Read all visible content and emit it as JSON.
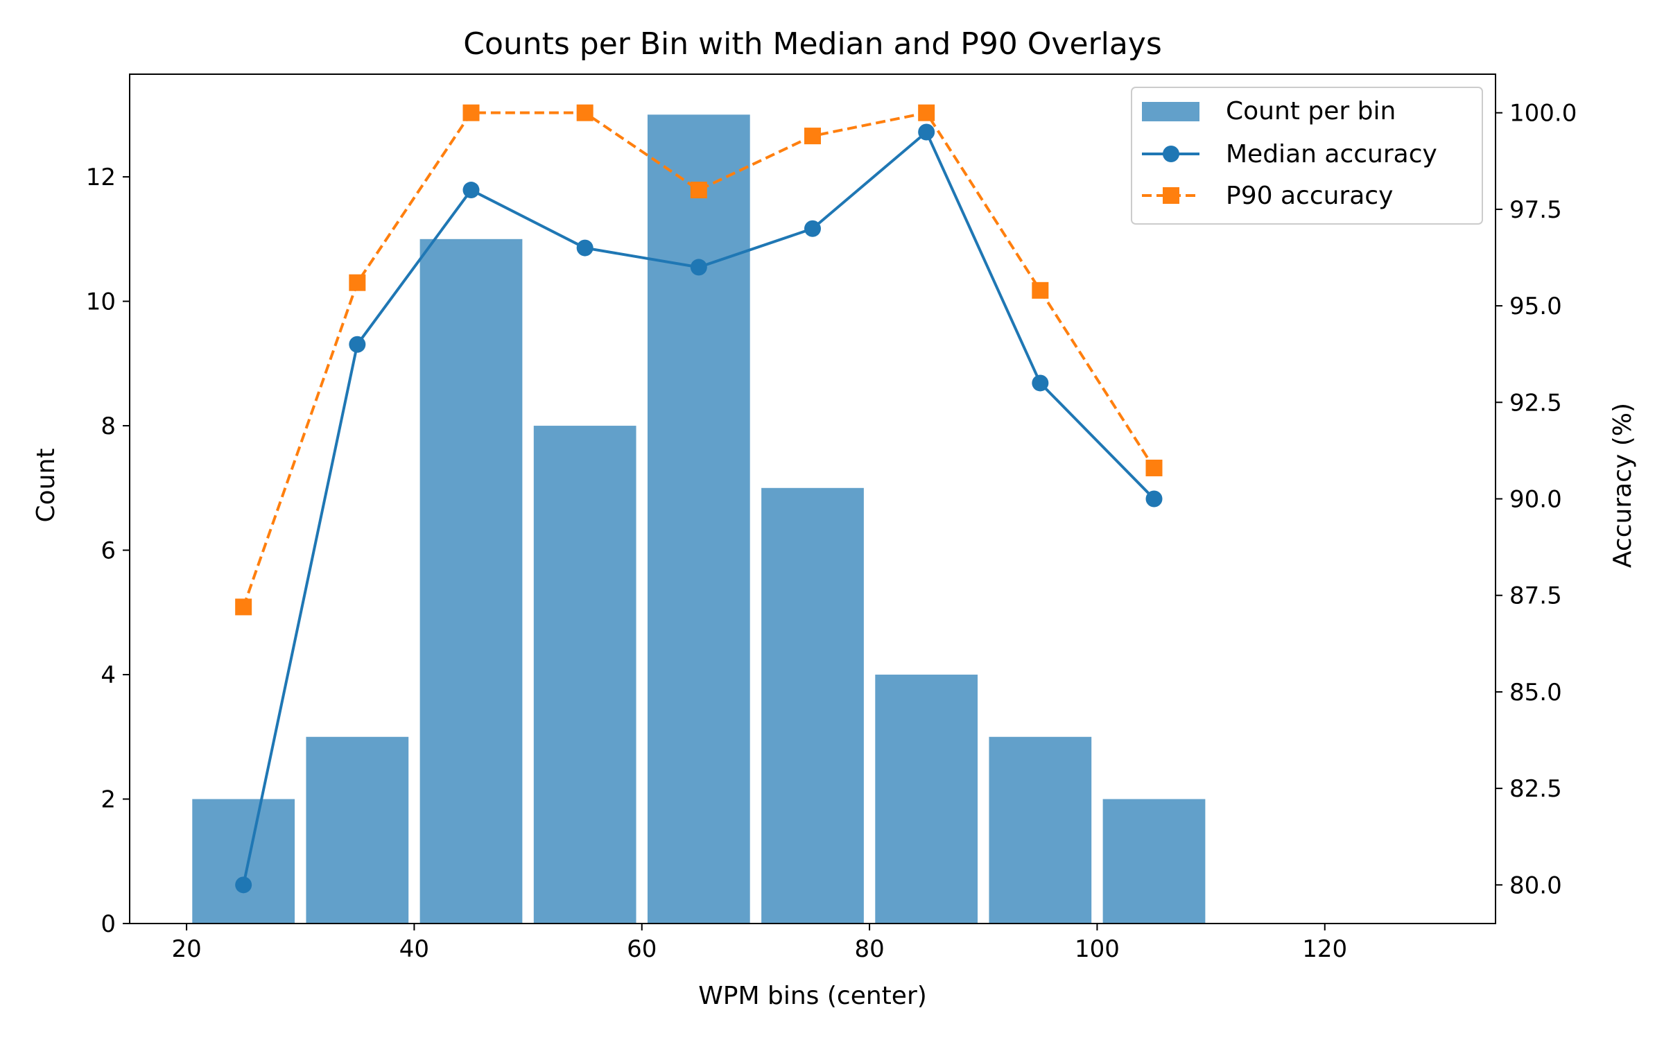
{
  "chart_data": {
    "type": "bar",
    "title": "Counts per Bin with Median and P90 Overlays",
    "xlabel": "WPM bins (center)",
    "ylabel": "Count",
    "ylabel_right": "Accuracy (%)",
    "x": [
      25,
      35,
      45,
      55,
      65,
      75,
      85,
      95,
      105
    ],
    "bin_width": 9,
    "xlim": [
      15,
      135
    ],
    "ylim": [
      0,
      13.65
    ],
    "ylim_right": [
      79.0,
      101.0
    ],
    "x_ticks": [
      20,
      40,
      60,
      80,
      100,
      120
    ],
    "y_ticks": [
      0,
      2,
      4,
      6,
      8,
      10,
      12
    ],
    "y_ticks_right": [
      80.0,
      82.5,
      85.0,
      87.5,
      90.0,
      92.5,
      95.0,
      97.5,
      100.0
    ],
    "x_tick_labels": [
      "20",
      "40",
      "60",
      "80",
      "100",
      "120"
    ],
    "y_tick_labels": [
      "0",
      "2",
      "4",
      "6",
      "8",
      "10",
      "12"
    ],
    "y_tick_labels_right": [
      "80.0",
      "82.5",
      "85.0",
      "87.5",
      "90.0",
      "92.5",
      "95.0",
      "97.5",
      "100.0"
    ],
    "grid": false,
    "legend_position": "top-right",
    "series": [
      {
        "name": "Count per bin",
        "type": "bar",
        "axis": "left",
        "color": "#1f77b4",
        "alpha": 0.7,
        "values": [
          2,
          3,
          11,
          8,
          13,
          7,
          4,
          3,
          2
        ]
      },
      {
        "name": "Median accuracy",
        "type": "line",
        "axis": "right",
        "color": "#1f77b4",
        "marker": "circle",
        "line_style": "solid",
        "values": [
          80.0,
          94.0,
          98.0,
          96.5,
          96.0,
          97.0,
          99.5,
          93.0,
          90.0
        ]
      },
      {
        "name": "P90 accuracy",
        "type": "line",
        "axis": "right",
        "color": "#ff7f0e",
        "marker": "square",
        "line_style": "dashed",
        "values": [
          87.2,
          95.6,
          100.0,
          100.0,
          98.0,
          99.4,
          100.0,
          95.4,
          90.8
        ]
      }
    ]
  }
}
